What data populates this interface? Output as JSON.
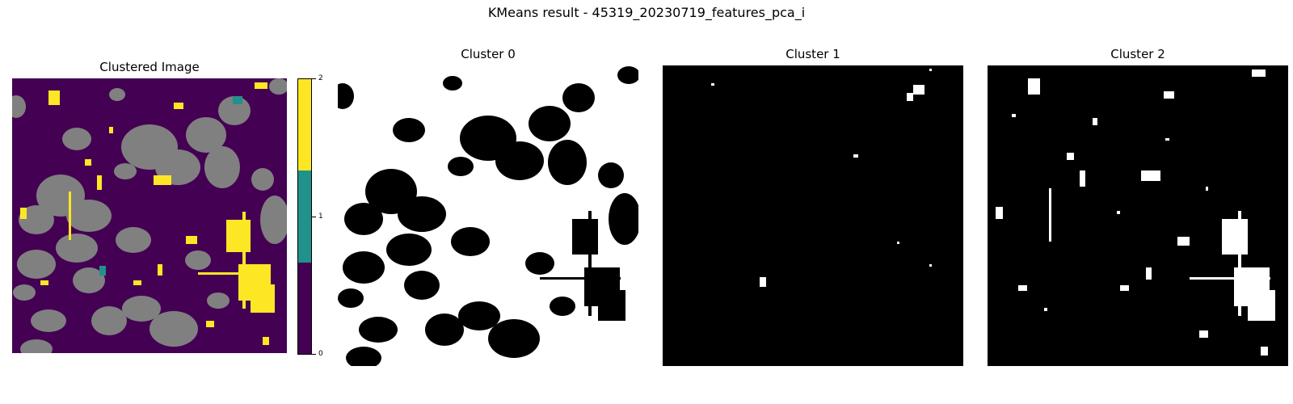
{
  "figure": {
    "suptitle": "KMeans result - 45319_20230719_features_pca_i"
  },
  "panels": [
    {
      "title": "Clustered Image"
    },
    {
      "title": "Cluster 0"
    },
    {
      "title": "Cluster 1"
    },
    {
      "title": "Cluster 2"
    }
  ],
  "colorbar": {
    "ticks": [
      "0",
      "1",
      "2"
    ],
    "colors": [
      "#440154",
      "#21918c",
      "#fde725"
    ],
    "no_data_color": "#808080"
  }
}
